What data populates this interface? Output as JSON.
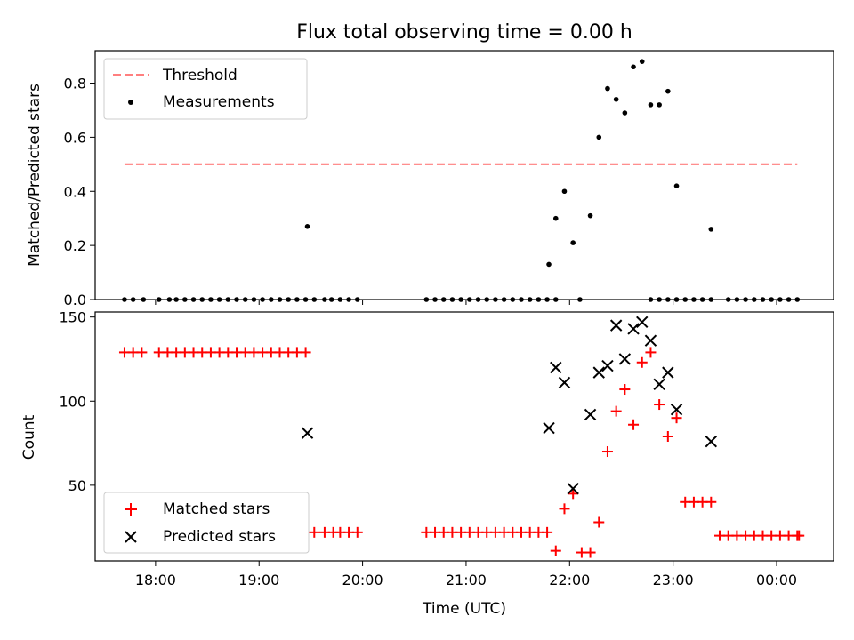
{
  "title": "Flux total observing time = 0.00 h",
  "chart_data": [
    {
      "type": "scatter",
      "panel": "top",
      "title": "Flux total observing time = 0.00 h",
      "xlabel": "",
      "ylabel": "Matched/Predicted stars",
      "xlim": [
        "17:25",
        "00:33"
      ],
      "ylim": [
        0,
        0.92
      ],
      "yticks": [
        "0.0",
        "0.2",
        "0.4",
        "0.6",
        "0.8"
      ],
      "ytick_values": [
        0,
        0.2,
        0.4,
        0.6,
        0.8
      ],
      "legend_position": "upper-left",
      "legend": [
        "Threshold",
        "Measurements"
      ],
      "series": [
        {
          "name": "Threshold",
          "kind": "line",
          "style": "dashed",
          "color": "#ff7f7f",
          "x": [
            "17:42",
            "00:12"
          ],
          "y": [
            0.5,
            0.5
          ]
        },
        {
          "name": "Measurements",
          "kind": "scatter",
          "color": "#000000",
          "x": [
            "17:42",
            "17:47",
            "17:53",
            "18:02",
            "18:08",
            "18:12",
            "18:17",
            "18:22",
            "18:27",
            "18:32",
            "18:37",
            "18:42",
            "18:47",
            "18:52",
            "18:57",
            "19:02",
            "19:07",
            "19:12",
            "19:17",
            "19:22",
            "19:27",
            "19:32",
            "19:38",
            "19:42",
            "19:47",
            "19:52",
            "19:57",
            "20:37",
            "20:42",
            "20:47",
            "20:52",
            "20:57",
            "21:02",
            "21:07",
            "21:12",
            "21:17",
            "21:22",
            "21:27",
            "21:32",
            "21:37",
            "21:42",
            "21:47",
            "21:52",
            "22:06",
            "22:47",
            "22:52",
            "22:57",
            "23:02",
            "23:07",
            "23:12",
            "23:17",
            "23:22",
            "23:32",
            "23:37",
            "23:42",
            "23:47",
            "23:52",
            "23:57",
            "00:02",
            "00:07",
            "00:12"
          ],
          "y": [
            0,
            0,
            0,
            0,
            0,
            0,
            0,
            0,
            0,
            0,
            0,
            0,
            0,
            0,
            0,
            0,
            0,
            0,
            0,
            0,
            0,
            0,
            0,
            0,
            0,
            0,
            0,
            0,
            0,
            0,
            0,
            0,
            0,
            0,
            0,
            0,
            0,
            0,
            0,
            0,
            0,
            0,
            0,
            0,
            0,
            0,
            0,
            0,
            0,
            0,
            0,
            0,
            0,
            0,
            0,
            0,
            0,
            0,
            0,
            0,
            0
          ],
          "x_extra": [
            "19:28",
            "21:48",
            "21:52",
            "21:57",
            "22:02",
            "22:12",
            "22:17",
            "22:22",
            "22:27",
            "22:32",
            "22:37",
            "22:42",
            "22:47",
            "22:52",
            "22:57",
            "23:02",
            "23:22"
          ],
          "y_extra": [
            0.27,
            0.13,
            0.3,
            0.4,
            0.21,
            0.31,
            0.6,
            0.78,
            0.74,
            0.69,
            0.86,
            0.88,
            0.72,
            0.72,
            0.77,
            0.42,
            0.26
          ]
        }
      ]
    },
    {
      "type": "scatter",
      "panel": "bottom",
      "xlabel": "Time (UTC)",
      "ylabel": "Count",
      "xlim": [
        "17:25",
        "00:33"
      ],
      "ylim": [
        5,
        153
      ],
      "xticks": [
        "18:00",
        "19:00",
        "20:00",
        "21:00",
        "22:00",
        "23:00",
        "00:00"
      ],
      "yticks": [
        "50",
        "100",
        "150"
      ],
      "ytick_values": [
        50,
        100,
        150
      ],
      "legend_position": "lower-left",
      "legend": [
        "Matched stars",
        "Predicted stars"
      ],
      "series": [
        {
          "name": "Matched stars",
          "marker": "+",
          "color": "#ff0000",
          "x": [
            "17:42",
            "17:47",
            "17:52",
            "18:02",
            "18:07",
            "18:12",
            "18:17",
            "18:22",
            "18:27",
            "18:32",
            "18:37",
            "18:42",
            "18:47",
            "18:52",
            "18:57",
            "19:02",
            "19:07",
            "19:12",
            "19:17",
            "19:22",
            "19:27",
            "19:32",
            "19:38",
            "19:43",
            "19:47",
            "19:52",
            "19:57",
            "20:37",
            "20:42",
            "20:47",
            "20:52",
            "20:57",
            "21:02",
            "21:07",
            "21:12",
            "21:17",
            "21:22",
            "21:27",
            "21:32",
            "21:37",
            "21:42",
            "21:47",
            "21:52",
            "21:57",
            "22:02",
            "22:07",
            "22:12",
            "22:17",
            "22:22",
            "22:27",
            "22:32",
            "22:37",
            "22:42",
            "22:47",
            "22:52",
            "22:57",
            "23:02",
            "23:07",
            "23:12",
            "23:17",
            "23:22",
            "23:27",
            "23:32",
            "23:37",
            "23:42",
            "23:47",
            "23:52",
            "23:57",
            "00:02",
            "00:07",
            "00:12",
            "00:13"
          ],
          "y": [
            129,
            129,
            129,
            129,
            129,
            129,
            129,
            129,
            129,
            129,
            129,
            129,
            129,
            129,
            129,
            129,
            129,
            129,
            129,
            129,
            129,
            22,
            22,
            22,
            22,
            22,
            22,
            22,
            22,
            22,
            22,
            22,
            22,
            22,
            22,
            22,
            22,
            22,
            22,
            22,
            22,
            22,
            11,
            36,
            45,
            10,
            10,
            28,
            70,
            94,
            107,
            86,
            123,
            129,
            98,
            79,
            90,
            40,
            40,
            40,
            40,
            20,
            20,
            20,
            20,
            20,
            20,
            20,
            20,
            20,
            20,
            20
          ]
        },
        {
          "name": "Predicted stars",
          "marker": "x",
          "color": "#000000",
          "x": [
            "19:28",
            "21:48",
            "21:52",
            "21:57",
            "22:02",
            "22:12",
            "22:17",
            "22:22",
            "22:27",
            "22:32",
            "22:37",
            "22:42",
            "22:47",
            "22:52",
            "22:57",
            "23:02",
            "23:22"
          ],
          "y": [
            81,
            84,
            120,
            111,
            48,
            92,
            117,
            121,
            145,
            125,
            143,
            147,
            136,
            110,
            117,
            95,
            76
          ]
        }
      ]
    }
  ]
}
